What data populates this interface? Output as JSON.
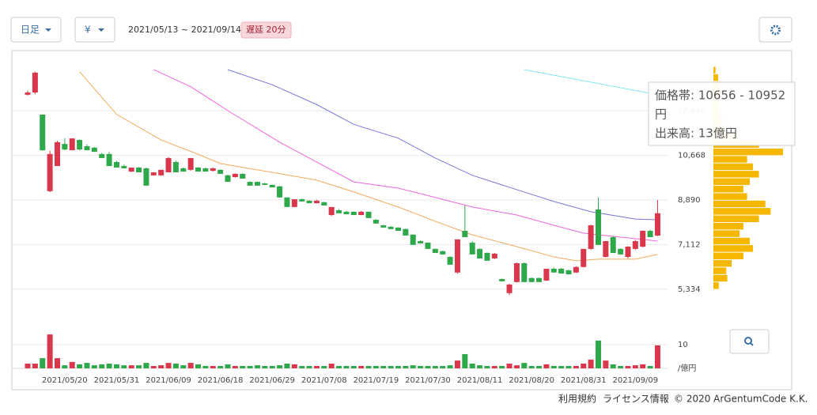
{
  "toolbar": {
    "period": "日足",
    "currency": "¥",
    "range": "2021/05/13 ~ 2021/09/14",
    "delay": "遅延 20分"
  },
  "chart_data": [
    {
      "type": "candlestick",
      "categories": [
        null,
        null,
        null,
        null,
        null,
        "2021/05/20",
        null,
        null,
        null,
        null,
        null,
        null,
        "2021/05/31",
        null,
        null,
        null,
        null,
        null,
        null,
        "2021/06/09",
        null,
        null,
        null,
        null,
        null,
        null,
        "2021/06/18",
        null,
        null,
        null,
        null,
        null,
        null,
        "2021/06/29",
        null,
        null,
        null,
        null,
        null,
        null,
        "2021/07/08",
        null,
        null,
        null,
        null,
        null,
        null,
        "2021/07/19",
        null,
        null,
        null,
        null,
        null,
        null,
        "2021/07/30",
        null,
        null,
        null,
        null,
        null,
        null,
        "2021/08/11",
        null,
        null,
        null,
        null,
        null,
        null,
        "2021/08/20",
        null,
        null,
        null,
        null,
        null,
        null,
        "2021/08/31",
        null,
        null,
        null,
        null,
        null,
        null,
        "2021/09/09",
        null,
        null,
        null
      ],
      "open": [
        13080,
        13170,
        12290,
        9240,
        10240,
        11120,
        10870,
        11280,
        11030,
        10970,
        10720,
        10720,
        10400,
        10240,
        10020,
        10180,
        10150,
        9870,
        9870,
        9990,
        10400,
        10150,
        10090,
        10180,
        10150,
        10050,
        10090,
        9870,
        9800,
        9930,
        9610,
        9610,
        9550,
        9490,
        9430,
        8990,
        8610,
        8920,
        8860,
        8760,
        8800,
        8290,
        8480,
        8420,
        8420,
        8290,
        8420,
        8100,
        7880,
        7820,
        7790,
        7730,
        7510,
        7250,
        7190,
        6940,
        6850,
        6620,
        6000,
        7660,
        7190,
        6940,
        6780,
        6560,
        5740,
        5180,
        5620,
        6370,
        5780,
        5780,
        5680,
        6150,
        6150,
        6090,
        6000,
        6220,
        6940,
        8510,
        6620,
        7410,
        6940,
        6620,
        6940,
        7030,
        7660,
        7470
      ],
      "high": [
        13250,
        14000,
        12300,
        10850,
        11250,
        11350,
        11350,
        11300,
        11100,
        11000,
        10760,
        10800,
        10450,
        10300,
        10180,
        10200,
        10180,
        10000,
        10100,
        10600,
        10450,
        10180,
        10560,
        10200,
        10180,
        10180,
        10100,
        9900,
        9950,
        9950,
        9630,
        9620,
        9570,
        9500,
        9450,
        9000,
        8920,
        8950,
        8880,
        8900,
        8820,
        8610,
        8520,
        8450,
        8430,
        8450,
        8430,
        8120,
        7900,
        7850,
        7800,
        7750,
        7520,
        7280,
        7200,
        6950,
        6870,
        6650,
        7320,
        8670,
        7250,
        6960,
        6800,
        6780,
        5760,
        5550,
        6400,
        6400,
        5800,
        5800,
        6150,
        6200,
        6180,
        6110,
        6250,
        6940,
        7900,
        8990,
        7260,
        7450,
        6960,
        7050,
        7300,
        7680,
        7700,
        8890
      ],
      "low": [
        13050,
        13100,
        10850,
        9200,
        10240,
        10870,
        10870,
        10870,
        10870,
        10800,
        10560,
        10240,
        10180,
        10150,
        10000,
        9990,
        9450,
        9850,
        9850,
        9990,
        9990,
        10020,
        10050,
        10020,
        10020,
        10020,
        9930,
        9610,
        9780,
        9740,
        9460,
        9460,
        9490,
        9390,
        8990,
        8610,
        8600,
        8830,
        8760,
        8750,
        8670,
        8250,
        8360,
        8320,
        8290,
        8280,
        8170,
        7950,
        7790,
        7730,
        7660,
        7470,
        7100,
        7160,
        6940,
        6780,
        6720,
        6310,
        5950,
        7410,
        6720,
        6560,
        6470,
        6540,
        5650,
        5100,
        5600,
        5620,
        5620,
        5620,
        5660,
        6000,
        5960,
        5930,
        5980,
        6200,
        6900,
        7100,
        6600,
        6780,
        6720,
        6560,
        6900,
        7000,
        7410,
        7450
      ],
      "close": [
        13170,
        13960,
        10870,
        10720,
        11190,
        10900,
        11340,
        10900,
        10870,
        10810,
        10560,
        10240,
        10180,
        10150,
        10180,
        9990,
        9460,
        9990,
        10090,
        10560,
        9990,
        10020,
        10560,
        10020,
        10020,
        10150,
        9930,
        9610,
        9930,
        9740,
        9460,
        9460,
        9490,
        9390,
        8990,
        8610,
        8920,
        8830,
        8760,
        8860,
        8670,
        8610,
        8360,
        8320,
        8290,
        8420,
        8170,
        7950,
        7790,
        7730,
        7660,
        7470,
        7100,
        7160,
        6940,
        6780,
        6720,
        6310,
        7320,
        7410,
        6720,
        6560,
        6470,
        6750,
        5650,
        5520,
        6370,
        5620,
        5620,
        5620,
        6150,
        6000,
        5960,
        5930,
        6220,
        6940,
        7880,
        7100,
        7250,
        6780,
        6720,
        7030,
        7250,
        7660,
        7410,
        8360
      ],
      "up_color": "#d9374b",
      "down_color": "#2ea84a",
      "ylim": [
        4890,
        14650
      ],
      "yticks": [
        {
          "value": 5334,
          "label": "5,334"
        },
        {
          "value": 7112,
          "label": "7,112"
        },
        {
          "value": 8890,
          "label": "8,890"
        },
        {
          "value": 10668,
          "label": "10,668"
        },
        {
          "value": 12446,
          "label": "12,446"
        }
      ],
      "grid": true,
      "lines": [
        {
          "color": "#f0aa5a",
          "x": [
            7,
            12,
            18,
            23,
            26,
            31,
            39,
            44,
            50,
            55,
            60,
            66,
            71,
            74,
            77,
            82,
            85
          ],
          "values": [
            14000,
            12300,
            11280,
            10710,
            10340,
            10090,
            9680,
            9210,
            8610,
            8040,
            7500,
            7030,
            6620,
            6470,
            6530,
            6530,
            6720
          ]
        },
        {
          "color": "#ee66dd",
          "x": [
            17,
            22,
            27,
            34,
            39,
            44,
            50,
            55,
            60,
            66,
            71,
            75,
            80,
            83,
            85
          ],
          "values": [
            14080,
            13400,
            12450,
            11190,
            10400,
            9610,
            9360,
            8990,
            8610,
            8290,
            7880,
            7570,
            7410,
            7320,
            7250
          ]
        },
        {
          "color": "#7878d8",
          "x": [
            27,
            33,
            39,
            44,
            50,
            55,
            60,
            66,
            71,
            76,
            82,
            85
          ],
          "values": [
            14080,
            13480,
            12690,
            11900,
            11350,
            10560,
            9870,
            9300,
            8830,
            8420,
            8130,
            8100
          ]
        },
        {
          "color": "#7fe8f2",
          "x": [
            67,
            84
          ],
          "values": [
            14080,
            13140
          ]
        }
      ]
    },
    {
      "type": "bar",
      "values": [
        2,
        2,
        4.3,
        14.3,
        4.3,
        1.3,
        2.7,
        1.7,
        2.3,
        1.3,
        1.7,
        2,
        1.7,
        1.3,
        1.3,
        1.3,
        2.3,
        1,
        1.3,
        2.3,
        2,
        1.3,
        2.3,
        1.7,
        1,
        1,
        1,
        1.7,
        1,
        1,
        1,
        1.3,
        1,
        1,
        1.3,
        2,
        1.7,
        1,
        1,
        1,
        1,
        2,
        1,
        1,
        1,
        1,
        1,
        1,
        1,
        1,
        1,
        1,
        1.3,
        1,
        1,
        1,
        1,
        1.3,
        3.3,
        6,
        2,
        1.3,
        1,
        1,
        1,
        2,
        1.3,
        2.3,
        1,
        1,
        1.7,
        1,
        1,
        1,
        1,
        2,
        3.7,
        11.7,
        3.3,
        1.7,
        1,
        1,
        1.3,
        1.7,
        1,
        9.7
      ],
      "ylim": [
        0,
        15
      ],
      "yticks": [
        10
      ],
      "unit_label": "/億円",
      "grid": true
    },
    {
      "type": "histogram",
      "orientation": "horizontal",
      "color": "#f6b700",
      "bins": [
        5328,
        5624,
        5920,
        6216,
        6512,
        6808,
        7104,
        7400,
        7696,
        7992,
        8288,
        8584,
        8880,
        9176,
        9472,
        9768,
        10064,
        10360,
        10656,
        10952,
        11248,
        11544,
        11840,
        12136,
        12432,
        12728,
        13024,
        13320,
        13616,
        13912,
        14208
      ],
      "values": [
        1,
        2.6,
        2.4,
        3.4,
        5.6,
        7.4,
        6.8,
        4.9,
        5.6,
        8.5,
        10.7,
        9.7,
        6.3,
        5.6,
        6.8,
        8.5,
        7.4,
        6.3,
        13,
        8.5,
        4.4,
        1.9,
        1.5,
        1.2,
        0.9,
        1.2,
        1.5,
        1.2,
        0.9,
        0.4
      ]
    }
  ],
  "tooltip": {
    "line1": "価格帯: 10656 - 10952",
    "line2": "円",
    "line3": "出来高: 13億円"
  },
  "footer": {
    "terms": "利用規約",
    "license": "ライセンス情報",
    "copyright": "© 2020 ArGentumCode K.K."
  }
}
